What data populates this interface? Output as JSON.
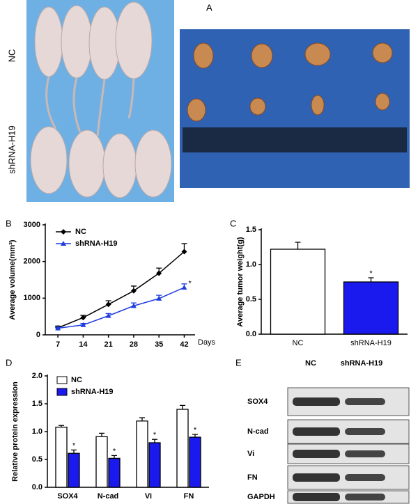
{
  "photo": {
    "panel": "A",
    "groups": [
      "NC",
      "shRNA-H19"
    ]
  },
  "blot": {
    "panel": "E",
    "columns": [
      "NC",
      "shRNA-H19"
    ],
    "rows": [
      "SOX4",
      "N-cad",
      "Vi",
      "FN",
      "GAPDH"
    ]
  },
  "chart_data": [
    {
      "panel": "B",
      "type": "line",
      "y_label": "Average volume(mm³)",
      "x_label": "Days",
      "x": [
        7,
        14,
        21,
        28,
        35,
        42
      ],
      "xlim": [
        3.5,
        45
      ],
      "xticks": [
        7,
        14,
        21,
        28,
        35,
        42
      ],
      "ylim": [
        0,
        3000
      ],
      "yticks": [
        0,
        1000,
        2000,
        3000
      ],
      "legend": "upper left",
      "series": [
        {
          "name": "NC",
          "color": "#000000",
          "marker": "diamond",
          "values": [
            190,
            470,
            830,
            1200,
            1680,
            2270
          ],
          "errors": [
            50,
            60,
            100,
            130,
            140,
            220
          ]
        },
        {
          "name": "shRNA-H19",
          "color": "#1f3de0",
          "marker": "triangle",
          "values": [
            180,
            270,
            520,
            790,
            990,
            1290
          ],
          "errors": [
            30,
            40,
            60,
            80,
            90,
            100
          ],
          "annotations": [
            null,
            null,
            null,
            null,
            null,
            "*"
          ]
        }
      ]
    },
    {
      "panel": "C",
      "type": "bar",
      "y_label": "Average tumor weight(g)",
      "categories": [
        "NC",
        "shRNA-H19"
      ],
      "values": [
        1.22,
        0.75
      ],
      "errors": [
        0.1,
        0.06
      ],
      "colors": [
        "#ffffff",
        "#1a1aee"
      ],
      "annotations": [
        null,
        "*"
      ],
      "ylim": [
        0,
        1.5
      ],
      "yticks": [
        {
          "value": 0,
          "label": "0.0"
        },
        {
          "value": 0.5,
          "label": "0.5"
        },
        {
          "value": 1,
          "label": "1.0"
        },
        {
          "value": 1.5,
          "label": "1.5"
        }
      ]
    },
    {
      "panel": "D",
      "type": "bar",
      "y_label": "Relative protein expression",
      "categories": [
        "SOX4",
        "N-cad",
        "Vi",
        "FN"
      ],
      "legend": "upper left",
      "ylim": [
        0,
        2
      ],
      "yticks": [
        {
          "value": 0,
          "label": "0.0"
        },
        {
          "value": 0.5,
          "label": "0.5"
        },
        {
          "value": 1,
          "label": "1.0"
        },
        {
          "value": 1.5,
          "label": "1.5"
        },
        {
          "value": 2,
          "label": "2.0"
        }
      ],
      "series": [
        {
          "name": "NC",
          "color": "#ffffff",
          "values": [
            1.08,
            0.91,
            1.19,
            1.4
          ],
          "errors": [
            0.03,
            0.06,
            0.06,
            0.07
          ]
        },
        {
          "name": "shRNA-H19",
          "color": "#1a1aee",
          "values": [
            0.61,
            0.52,
            0.8,
            0.9
          ],
          "errors": [
            0.06,
            0.05,
            0.06,
            0.05
          ],
          "annotations": [
            "*",
            "*",
            "*",
            "*"
          ]
        }
      ]
    }
  ]
}
